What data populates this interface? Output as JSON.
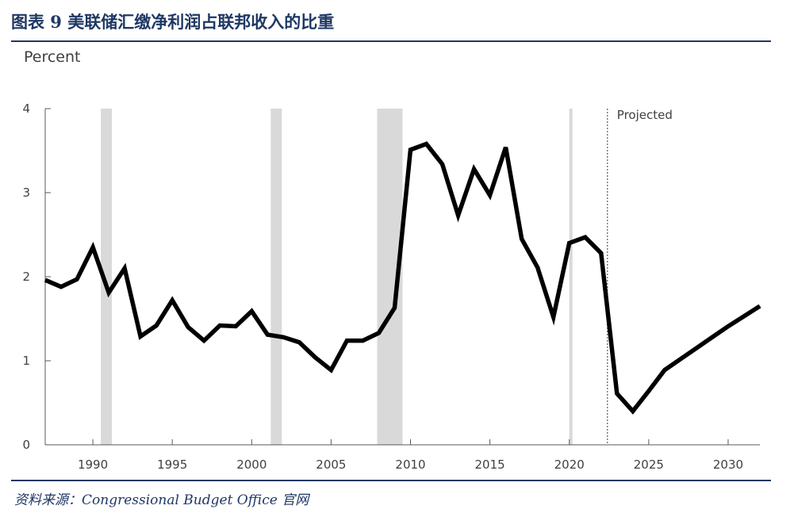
{
  "header": {
    "title": "图表 9  美联储汇缴净利润占联邦收入的比重"
  },
  "footer": {
    "source": "资料来源：Congressional Budget Office 官网"
  },
  "chart_data": {
    "type": "line",
    "title": "图表 9  美联储汇缴净利润占联邦收入的比重",
    "ylabel": "Percent",
    "xlabel": "",
    "xlim": [
      1987,
      2032
    ],
    "ylim": [
      0,
      4
    ],
    "x_ticks": [
      1990,
      1995,
      2000,
      2005,
      2010,
      2015,
      2020,
      2025,
      2030
    ],
    "y_ticks": [
      0,
      1,
      2,
      3,
      4
    ],
    "grid": false,
    "colors": {
      "line": "#000000",
      "recession": "#d9d9d9",
      "axis": "#595959"
    },
    "recessions": [
      [
        1990.5,
        1991.2
      ],
      [
        2001.2,
        2001.9
      ],
      [
        2007.9,
        2009.5
      ],
      [
        2020.0,
        2020.2
      ]
    ],
    "projection_start": 2022.4,
    "annotations": [
      {
        "text": "Projected"
      }
    ],
    "series": [
      {
        "x": [
          1987,
          1988,
          1989,
          1990,
          1991,
          1992,
          1993,
          1994,
          1995,
          1996,
          1997,
          1998,
          1999,
          2000,
          2001,
          2002,
          2003,
          2004,
          2005,
          2006,
          2007,
          2008,
          2009,
          2010,
          2011,
          2012,
          2013,
          2014,
          2015,
          2016,
          2017,
          2018,
          2019,
          2020,
          2021,
          2022,
          2023,
          2024,
          2025,
          2026,
          2027,
          2028,
          2029,
          2030,
          2031,
          2032
        ],
        "values": [
          1.96,
          1.88,
          1.97,
          2.35,
          1.81,
          2.1,
          1.29,
          1.42,
          1.72,
          1.4,
          1.24,
          1.42,
          1.41,
          1.59,
          1.31,
          1.28,
          1.22,
          1.04,
          0.89,
          1.24,
          1.24,
          1.33,
          1.63,
          3.51,
          3.58,
          3.34,
          2.73,
          3.28,
          2.97,
          3.54,
          2.45,
          2.11,
          1.52,
          2.4,
          2.47,
          2.28,
          0.61,
          0.4,
          0.64,
          0.89,
          1.02,
          1.15,
          1.28,
          1.41,
          1.53,
          1.65
        ]
      }
    ]
  }
}
